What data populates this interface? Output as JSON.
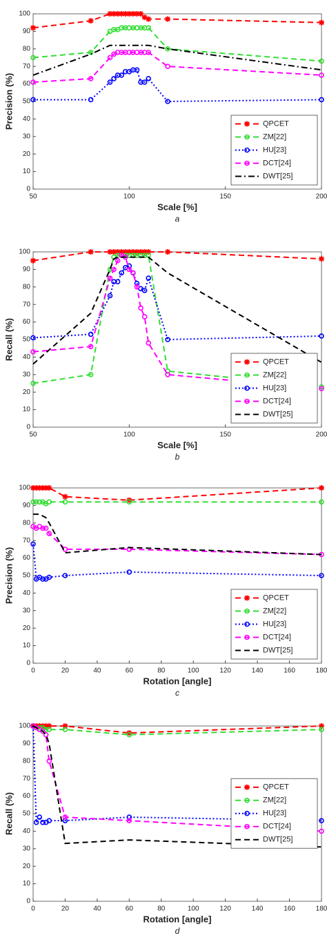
{
  "chart_data": [
    {
      "type": "line",
      "caption": "a",
      "xlabel": "Scale [%]",
      "ylabel": "Precision (%)",
      "x": [
        50,
        80,
        90,
        92,
        94,
        96,
        98,
        100,
        102,
        104,
        106,
        108,
        110,
        120,
        200
      ],
      "xlim": [
        50,
        200
      ],
      "xticks": [
        50,
        100,
        150,
        200
      ],
      "ylim": [
        0,
        100
      ],
      "yticks": [
        0,
        10,
        20,
        30,
        40,
        50,
        60,
        70,
        80,
        90,
        100
      ],
      "legend": "lower right",
      "series": [
        {
          "name": "QPCET",
          "color": "#ff0000",
          "dash": "dash",
          "marker": "star",
          "values": [
            92,
            96,
            100,
            100,
            100,
            100,
            100,
            100,
            100,
            100,
            100,
            98,
            97,
            97,
            95
          ]
        },
        {
          "name": "ZM[22]",
          "color": "#33dd33",
          "dash": "dash",
          "marker": "circle",
          "values": [
            75,
            78,
            90,
            91,
            91,
            92,
            92,
            92,
            92,
            92,
            92,
            92,
            92,
            80,
            73
          ]
        },
        {
          "name": "HU[23]",
          "color": "#0000ff",
          "dash": "dot",
          "marker": "circle",
          "values": [
            51,
            51,
            61,
            63,
            65,
            65,
            67,
            67,
            68,
            68,
            61,
            61,
            63,
            50,
            51
          ]
        },
        {
          "name": "DCT[24]",
          "color": "#ff00ff",
          "dash": "dash",
          "marker": "circle",
          "values": [
            61,
            63,
            75,
            77,
            78,
            78,
            78,
            78,
            78,
            78,
            78,
            78,
            78,
            70,
            65
          ]
        },
        {
          "name": "DWT[25]",
          "color": "#000000",
          "dash": "dashdot",
          "marker": "none",
          "values": [
            65,
            77,
            82,
            82,
            82,
            82,
            82,
            82,
            82,
            82,
            82,
            82,
            82,
            80,
            68
          ]
        }
      ]
    },
    {
      "type": "line",
      "caption": "b",
      "xlabel": "Scale [%]",
      "ylabel": "Recall (%)",
      "x": [
        50,
        80,
        90,
        92,
        94,
        96,
        98,
        100,
        102,
        104,
        106,
        108,
        110,
        120,
        200
      ],
      "xlim": [
        50,
        200
      ],
      "xticks": [
        50,
        100,
        150,
        200
      ],
      "ylim": [
        0,
        100
      ],
      "yticks": [
        0,
        10,
        20,
        30,
        40,
        50,
        60,
        70,
        80,
        90,
        100
      ],
      "legend": "lower right",
      "series": [
        {
          "name": "QPCET",
          "color": "#ff0000",
          "dash": "dash",
          "marker": "star",
          "values": [
            95,
            100,
            100,
            100,
            100,
            100,
            100,
            100,
            100,
            100,
            100,
            100,
            100,
            100,
            96
          ]
        },
        {
          "name": "ZM[22]",
          "color": "#33dd33",
          "dash": "dash",
          "marker": "circle",
          "values": [
            25,
            30,
            90,
            97,
            98,
            98,
            98,
            98,
            98,
            98,
            98,
            98,
            98,
            32,
            23
          ]
        },
        {
          "name": "HU[23]",
          "color": "#0000ff",
          "dash": "dot",
          "marker": "circle",
          "values": [
            51,
            53,
            75,
            83,
            83,
            88,
            91,
            92,
            88,
            82,
            79,
            78,
            85,
            50,
            52
          ]
        },
        {
          "name": "DCT[24]",
          "color": "#ff00ff",
          "dash": "dash",
          "marker": "circle",
          "values": [
            43,
            46,
            85,
            90,
            95,
            98,
            97,
            90,
            88,
            80,
            68,
            63,
            48,
            30,
            22
          ]
        },
        {
          "name": "DWT[25]",
          "color": "#000000",
          "dash": "dash",
          "marker": "none",
          "values": [
            36,
            65,
            90,
            96,
            97,
            97,
            97,
            97,
            97,
            97,
            97,
            97,
            97,
            88,
            37
          ]
        }
      ]
    },
    {
      "type": "line",
      "caption": "c",
      "xlabel": "Rotation [angle]",
      "ylabel": "Precision (%)",
      "x": [
        0,
        2,
        4,
        6,
        8,
        10,
        20,
        60,
        180
      ],
      "xlim": [
        0,
        180
      ],
      "xticks": [
        0,
        20,
        40,
        60,
        80,
        100,
        120,
        140,
        160,
        180
      ],
      "ylim": [
        0,
        100
      ],
      "yticks": [
        0,
        10,
        20,
        30,
        40,
        50,
        60,
        70,
        80,
        90,
        100
      ],
      "legend": "lower right",
      "series": [
        {
          "name": "QPCET",
          "color": "#ff0000",
          "dash": "dash",
          "marker": "star",
          "values": [
            100,
            100,
            100,
            100,
            100,
            100,
            95,
            93,
            100
          ]
        },
        {
          "name": "ZM[22]",
          "color": "#33dd33",
          "dash": "dash",
          "marker": "circle",
          "values": [
            92,
            92,
            92,
            92,
            91,
            92,
            92,
            92,
            92
          ]
        },
        {
          "name": "HU[23]",
          "color": "#0000ff",
          "dash": "dot",
          "marker": "circle",
          "values": [
            68,
            48,
            49,
            48,
            48,
            49,
            50,
            52,
            50
          ]
        },
        {
          "name": "DCT[24]",
          "color": "#ff00ff",
          "dash": "dash",
          "marker": "circle",
          "values": [
            78,
            77,
            78,
            77,
            77,
            74,
            65,
            65,
            62
          ]
        },
        {
          "name": "DWT[25]",
          "color": "#000000",
          "dash": "dash",
          "marker": "none",
          "values": [
            85,
            85,
            85,
            84,
            83,
            80,
            63,
            66,
            62
          ]
        }
      ]
    },
    {
      "type": "line",
      "caption": "d",
      "xlabel": "Rotation [angle]",
      "ylabel": "Recall (%)",
      "x": [
        0,
        2,
        4,
        6,
        8,
        10,
        20,
        60,
        180
      ],
      "xlim": [
        0,
        180
      ],
      "xticks": [
        0,
        20,
        40,
        60,
        80,
        100,
        120,
        140,
        160,
        180
      ],
      "ylim": [
        0,
        100
      ],
      "yticks": [
        0,
        10,
        20,
        30,
        40,
        50,
        60,
        70,
        80,
        90,
        100
      ],
      "legend": "upper right",
      "series": [
        {
          "name": "QPCET",
          "color": "#ff0000",
          "dash": "dash",
          "marker": "star",
          "values": [
            100,
            100,
            100,
            100,
            100,
            100,
            100,
            96,
            100
          ]
        },
        {
          "name": "ZM[22]",
          "color": "#33dd33",
          "dash": "dash",
          "marker": "circle",
          "values": [
            100,
            99,
            99,
            99,
            98,
            98,
            98,
            95,
            98
          ]
        },
        {
          "name": "HU[23]",
          "color": "#0000ff",
          "dash": "dot",
          "marker": "circle",
          "values": [
            100,
            45,
            48,
            45,
            45,
            46,
            46,
            48,
            46
          ]
        },
        {
          "name": "DCT[24]",
          "color": "#ff00ff",
          "dash": "dash",
          "marker": "circle",
          "values": [
            100,
            99,
            98,
            97,
            95,
            80,
            48,
            46,
            40
          ]
        },
        {
          "name": "DWT[25]",
          "color": "#000000",
          "dash": "dash",
          "marker": "none",
          "values": [
            100,
            99,
            98,
            97,
            95,
            90,
            33,
            35,
            31
          ]
        }
      ]
    }
  ]
}
